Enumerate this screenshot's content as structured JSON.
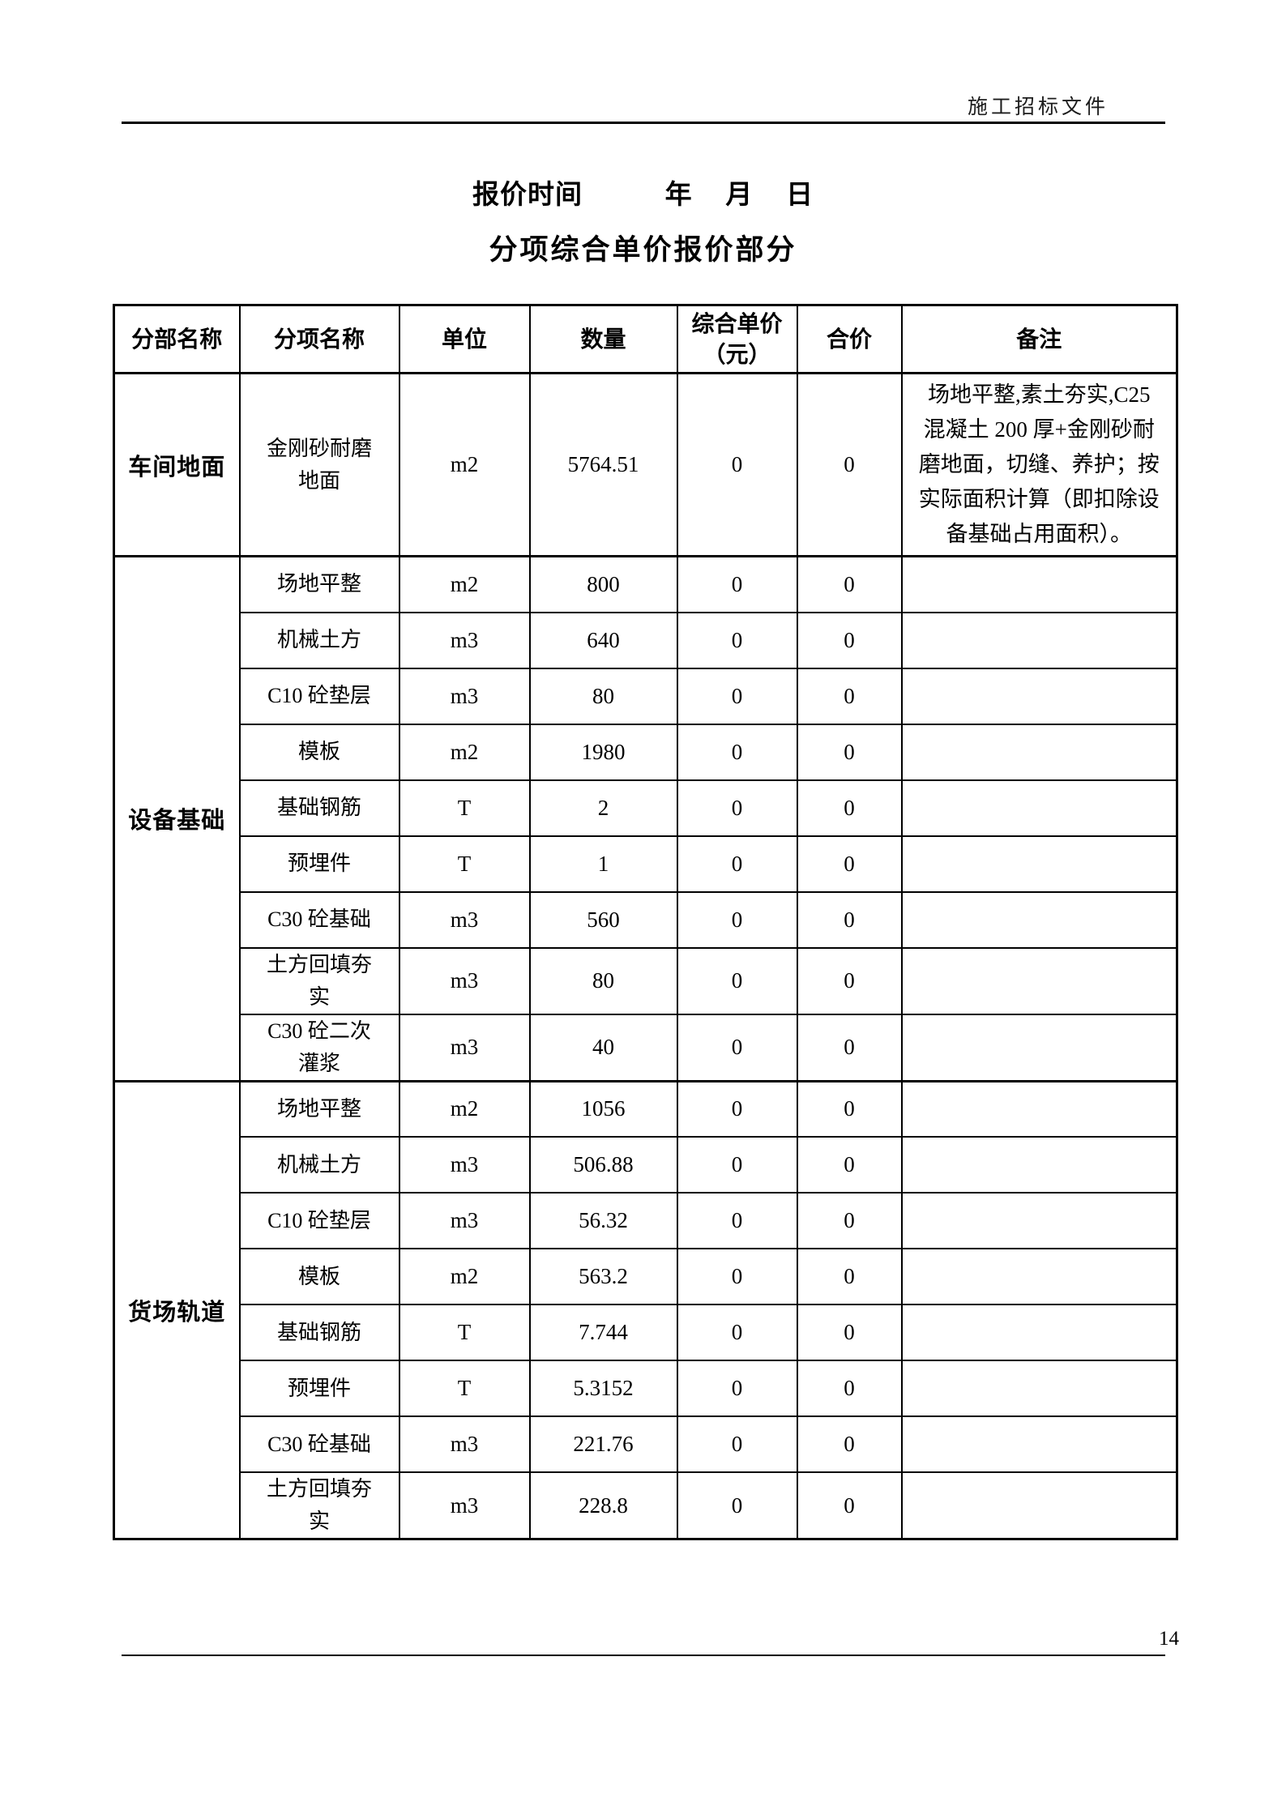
{
  "page": {
    "header_right": "施工招标文件",
    "title_line1": "报价时间          年    月    日",
    "title_line2": "分项综合单价报价部分",
    "page_number": "14"
  },
  "table": {
    "columns": [
      "分部名称",
      "分项名称",
      "单位",
      "数量",
      "综合单价（元）",
      "合价",
      "备注"
    ],
    "groups": [
      {
        "name": "车间地面",
        "rows": [
          {
            "item": "金刚砂耐磨地面",
            "unit": "m2",
            "qty": "5764.51",
            "unit_price": "0",
            "total": "0",
            "note": "场地平整,素土夯实,C25混凝土 200 厚+金刚砂耐磨地面，切缝、养护；按实际面积计算（即扣除设备基础占用面积）。"
          }
        ]
      },
      {
        "name": "设备基础",
        "rows": [
          {
            "item": "场地平整",
            "unit": "m2",
            "qty": "800",
            "unit_price": "0",
            "total": "0",
            "note": ""
          },
          {
            "item": "机械土方",
            "unit": "m3",
            "qty": "640",
            "unit_price": "0",
            "total": "0",
            "note": ""
          },
          {
            "item": "C10 砼垫层",
            "unit": "m3",
            "qty": "80",
            "unit_price": "0",
            "total": "0",
            "note": ""
          },
          {
            "item": "模板",
            "unit": "m2",
            "qty": "1980",
            "unit_price": "0",
            "total": "0",
            "note": ""
          },
          {
            "item": "基础钢筋",
            "unit": "T",
            "qty": "2",
            "unit_price": "0",
            "total": "0",
            "note": ""
          },
          {
            "item": "预埋件",
            "unit": "T",
            "qty": "1",
            "unit_price": "0",
            "total": "0",
            "note": ""
          },
          {
            "item": "C30 砼基础",
            "unit": "m3",
            "qty": "560",
            "unit_price": "0",
            "total": "0",
            "note": ""
          },
          {
            "item": "土方回填夯实",
            "unit": "m3",
            "qty": "80",
            "unit_price": "0",
            "total": "0",
            "note": ""
          },
          {
            "item": "C30 砼二次灌浆",
            "unit": "m3",
            "qty": "40",
            "unit_price": "0",
            "total": "0",
            "note": ""
          }
        ]
      },
      {
        "name": "货场轨道",
        "rows": [
          {
            "item": "场地平整",
            "unit": "m2",
            "qty": "1056",
            "unit_price": "0",
            "total": "0",
            "note": ""
          },
          {
            "item": "机械土方",
            "unit": "m3",
            "qty": "506.88",
            "unit_price": "0",
            "total": "0",
            "note": ""
          },
          {
            "item": "C10 砼垫层",
            "unit": "m3",
            "qty": "56.32",
            "unit_price": "0",
            "total": "0",
            "note": ""
          },
          {
            "item": "模板",
            "unit": "m2",
            "qty": "563.2",
            "unit_price": "0",
            "total": "0",
            "note": ""
          },
          {
            "item": "基础钢筋",
            "unit": "T",
            "qty": "7.744",
            "unit_price": "0",
            "total": "0",
            "note": ""
          },
          {
            "item": "预埋件",
            "unit": "T",
            "qty": "5.3152",
            "unit_price": "0",
            "total": "0",
            "note": ""
          },
          {
            "item": "C30 砼基础",
            "unit": "m3",
            "qty": "221.76",
            "unit_price": "0",
            "total": "0",
            "note": ""
          },
          {
            "item": "土方回填夯实",
            "unit": "m3",
            "qty": "228.8",
            "unit_price": "0",
            "total": "0",
            "note": ""
          }
        ]
      }
    ]
  }
}
